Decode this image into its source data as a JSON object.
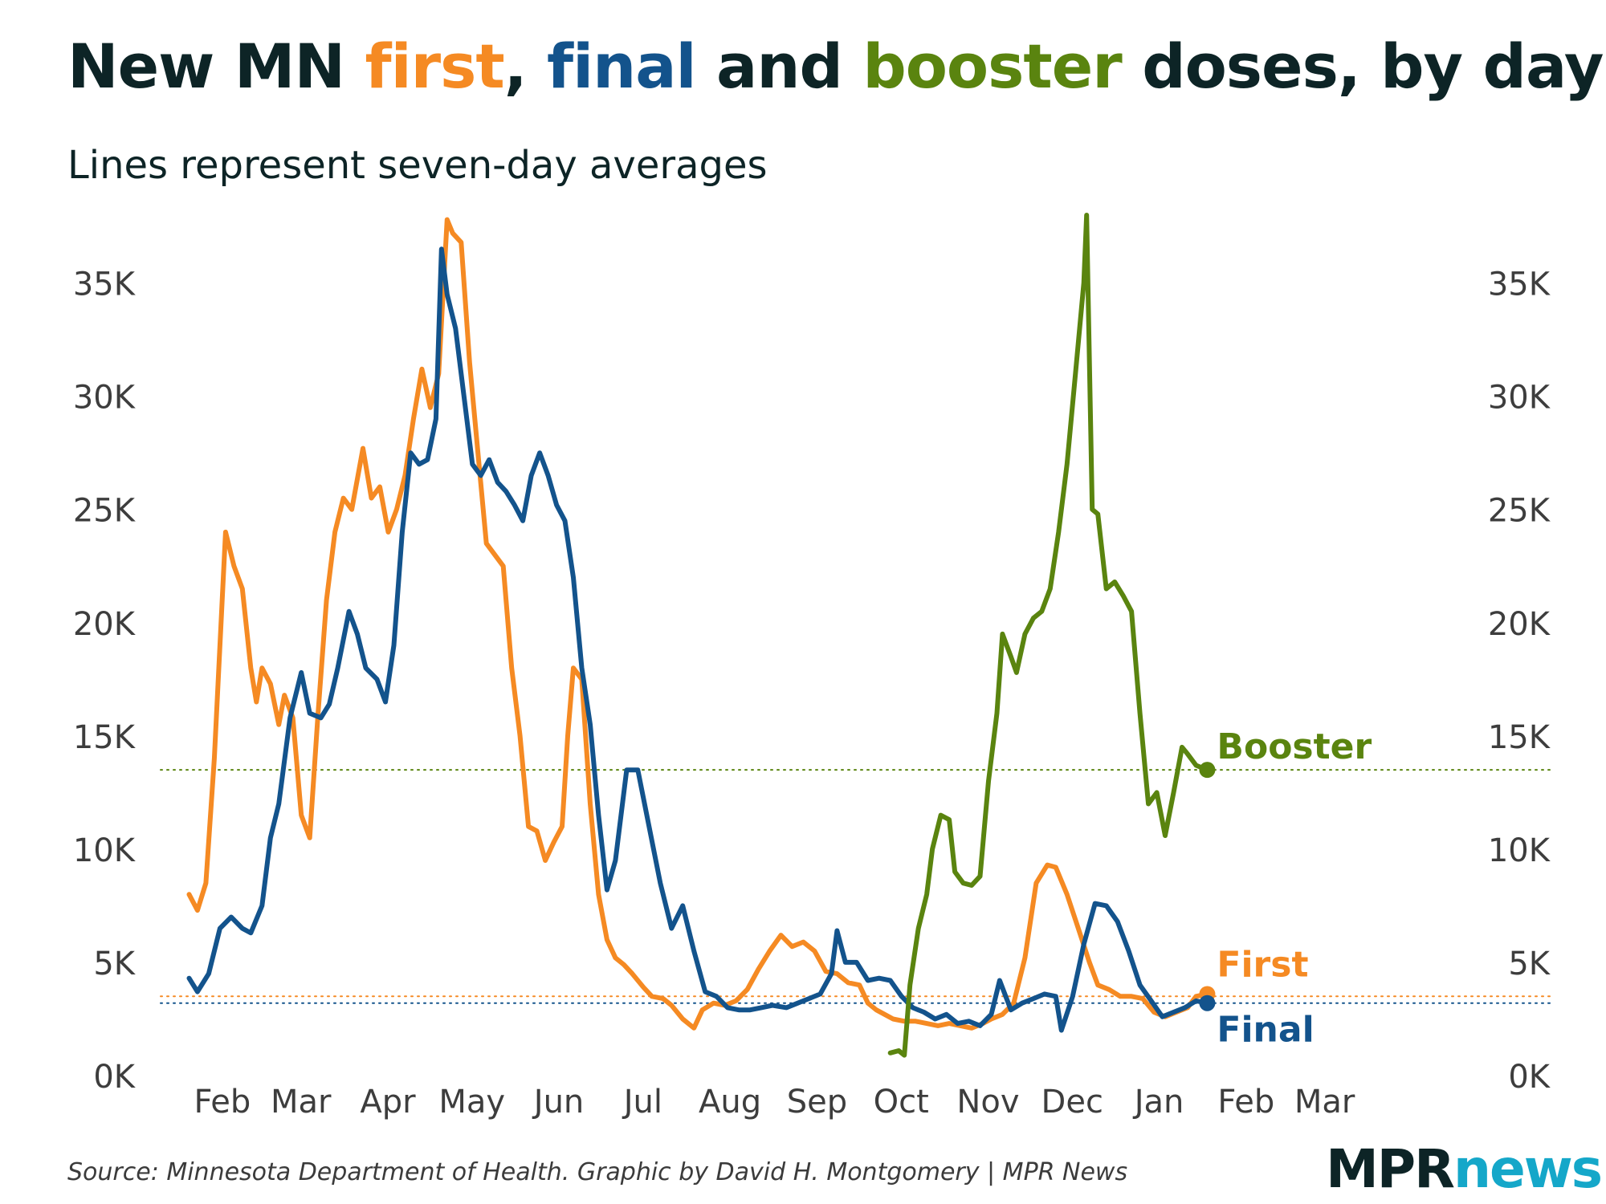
{
  "header": {
    "title_parts": {
      "p1": "New MN ",
      "first": "first",
      "p2": ", ",
      "final": "final",
      "p3": " and ",
      "booster": "booster",
      "p4": " doses, by day"
    },
    "subtitle": "Lines represent seven-day averages"
  },
  "footer": {
    "source": "Source: Minnesota Department of Health. Graphic by David H. Montgomery | MPR News",
    "logo_part1": "MPR",
    "logo_part2": "news"
  },
  "colors": {
    "first": "#f58a23",
    "final": "#13538c",
    "booster": "#5a840f",
    "text": "#0d2426",
    "axis_text": "#3d3d3d"
  },
  "chart_data": {
    "type": "line",
    "x_domain": [
      "2021-01-14",
      "2022-03-20"
    ],
    "ylim": [
      0,
      38000
    ],
    "y_ticks": [
      0,
      5000,
      10000,
      15000,
      20000,
      25000,
      30000,
      35000
    ],
    "y_tick_labels": [
      "0K",
      "5K",
      "10K",
      "15K",
      "20K",
      "25K",
      "30K",
      "35K"
    ],
    "x_ticks": [
      "2021-02-01",
      "2021-03-01",
      "2021-04-01",
      "2021-05-01",
      "2021-06-01",
      "2021-07-01",
      "2021-08-01",
      "2021-09-01",
      "2021-10-01",
      "2021-11-01",
      "2021-12-01",
      "2022-01-01",
      "2022-02-01",
      "2022-03-01"
    ],
    "x_tick_labels": [
      "Feb",
      "Mar",
      "Apr",
      "May",
      "Jun",
      "Jul",
      "Aug",
      "Sep",
      "Oct",
      "Nov",
      "Dec",
      "Jan",
      "Feb",
      "Mar"
    ],
    "xlabel": "",
    "ylabel": "",
    "grid": false,
    "reference_lines": [
      {
        "series": "Booster",
        "y": 13500
      },
      {
        "series": "First",
        "y": 3500
      },
      {
        "series": "Final",
        "y": 3200
      }
    ],
    "series": [
      {
        "name": "First",
        "color": "#f58a23",
        "points": [
          [
            "2021-01-19",
            8000
          ],
          [
            "2021-01-22",
            7300
          ],
          [
            "2021-01-25",
            8500
          ],
          [
            "2021-01-28",
            14000
          ],
          [
            "2021-02-01",
            24000
          ],
          [
            "2021-02-04",
            22500
          ],
          [
            "2021-02-07",
            21500
          ],
          [
            "2021-02-10",
            18000
          ],
          [
            "2021-02-12",
            16500
          ],
          [
            "2021-02-14",
            18000
          ],
          [
            "2021-02-17",
            17300
          ],
          [
            "2021-02-20",
            15500
          ],
          [
            "2021-02-22",
            16800
          ],
          [
            "2021-02-25",
            15800
          ],
          [
            "2021-02-28",
            11500
          ],
          [
            "2021-03-03",
            10500
          ],
          [
            "2021-03-06",
            16000
          ],
          [
            "2021-03-09",
            21000
          ],
          [
            "2021-03-12",
            24000
          ],
          [
            "2021-03-15",
            25500
          ],
          [
            "2021-03-18",
            25000
          ],
          [
            "2021-03-22",
            27700
          ],
          [
            "2021-03-25",
            25500
          ],
          [
            "2021-03-28",
            26000
          ],
          [
            "2021-03-31",
            24000
          ],
          [
            "2021-04-03",
            25000
          ],
          [
            "2021-04-06",
            26500
          ],
          [
            "2021-04-09",
            29000
          ],
          [
            "2021-04-12",
            31200
          ],
          [
            "2021-04-15",
            29500
          ],
          [
            "2021-04-18",
            31000
          ],
          [
            "2021-04-21",
            37800
          ],
          [
            "2021-04-23",
            37200
          ],
          [
            "2021-04-26",
            36800
          ],
          [
            "2021-04-29",
            31500
          ],
          [
            "2021-05-02",
            27500
          ],
          [
            "2021-05-05",
            23500
          ],
          [
            "2021-05-08",
            23000
          ],
          [
            "2021-05-11",
            22500
          ],
          [
            "2021-05-14",
            18000
          ],
          [
            "2021-05-17",
            15000
          ],
          [
            "2021-05-20",
            11000
          ],
          [
            "2021-05-23",
            10800
          ],
          [
            "2021-05-26",
            9500
          ],
          [
            "2021-05-29",
            10300
          ],
          [
            "2021-06-01",
            11000
          ],
          [
            "2021-06-03",
            15000
          ],
          [
            "2021-06-05",
            18000
          ],
          [
            "2021-06-08",
            17500
          ],
          [
            "2021-06-11",
            12000
          ],
          [
            "2021-06-14",
            8000
          ],
          [
            "2021-06-17",
            6000
          ],
          [
            "2021-06-20",
            5200
          ],
          [
            "2021-06-23",
            4900
          ],
          [
            "2021-06-26",
            4500
          ],
          [
            "2021-06-30",
            3900
          ],
          [
            "2021-07-03",
            3500
          ],
          [
            "2021-07-07",
            3400
          ],
          [
            "2021-07-10",
            3100
          ],
          [
            "2021-07-14",
            2500
          ],
          [
            "2021-07-18",
            2100
          ],
          [
            "2021-07-21",
            2900
          ],
          [
            "2021-07-25",
            3200
          ],
          [
            "2021-07-29",
            3100
          ],
          [
            "2021-08-02",
            3300
          ],
          [
            "2021-08-06",
            3800
          ],
          [
            "2021-08-10",
            4700
          ],
          [
            "2021-08-14",
            5500
          ],
          [
            "2021-08-18",
            6200
          ],
          [
            "2021-08-22",
            5700
          ],
          [
            "2021-08-26",
            5900
          ],
          [
            "2021-08-30",
            5500
          ],
          [
            "2021-09-03",
            4600
          ],
          [
            "2021-09-07",
            4500
          ],
          [
            "2021-09-11",
            4100
          ],
          [
            "2021-09-15",
            4000
          ],
          [
            "2021-09-18",
            3200
          ],
          [
            "2021-09-21",
            2900
          ],
          [
            "2021-09-24",
            2700
          ],
          [
            "2021-09-27",
            2500
          ],
          [
            "2021-10-01",
            2400
          ],
          [
            "2021-10-05",
            2400
          ],
          [
            "2021-10-09",
            2300
          ],
          [
            "2021-10-13",
            2200
          ],
          [
            "2021-10-17",
            2300
          ],
          [
            "2021-10-21",
            2200
          ],
          [
            "2021-10-25",
            2100
          ],
          [
            "2021-10-29",
            2300
          ],
          [
            "2021-11-01",
            2500
          ],
          [
            "2021-11-05",
            2700
          ],
          [
            "2021-11-09",
            3200
          ],
          [
            "2021-11-13",
            5200
          ],
          [
            "2021-11-17",
            8500
          ],
          [
            "2021-11-21",
            9300
          ],
          [
            "2021-11-24",
            9200
          ],
          [
            "2021-11-28",
            8000
          ],
          [
            "2021-12-02",
            6500
          ],
          [
            "2021-12-06",
            5000
          ],
          [
            "2021-12-09",
            4000
          ],
          [
            "2021-12-13",
            3800
          ],
          [
            "2021-12-17",
            3500
          ],
          [
            "2021-12-21",
            3500
          ],
          [
            "2021-12-25",
            3400
          ],
          [
            "2021-12-29",
            2800
          ],
          [
            "2022-01-02",
            2600
          ],
          [
            "2022-01-06",
            2800
          ],
          [
            "2022-01-10",
            3000
          ],
          [
            "2022-01-13",
            3500
          ],
          [
            "2022-01-17",
            3600
          ]
        ]
      },
      {
        "name": "Final",
        "color": "#13538c",
        "points": [
          [
            "2021-01-19",
            4300
          ],
          [
            "2021-01-22",
            3700
          ],
          [
            "2021-01-26",
            4500
          ],
          [
            "2021-01-30",
            6500
          ],
          [
            "2021-02-03",
            7000
          ],
          [
            "2021-02-07",
            6500
          ],
          [
            "2021-02-10",
            6300
          ],
          [
            "2021-02-14",
            7500
          ],
          [
            "2021-02-17",
            10500
          ],
          [
            "2021-02-20",
            12000
          ],
          [
            "2021-02-24",
            15800
          ],
          [
            "2021-02-28",
            17800
          ],
          [
            "2021-03-03",
            16000
          ],
          [
            "2021-03-07",
            15800
          ],
          [
            "2021-03-10",
            16400
          ],
          [
            "2021-03-13",
            18000
          ],
          [
            "2021-03-17",
            20500
          ],
          [
            "2021-03-20",
            19500
          ],
          [
            "2021-03-23",
            18000
          ],
          [
            "2021-03-27",
            17500
          ],
          [
            "2021-03-30",
            16500
          ],
          [
            "2021-04-02",
            19000
          ],
          [
            "2021-04-05",
            24000
          ],
          [
            "2021-04-08",
            27500
          ],
          [
            "2021-04-11",
            27000
          ],
          [
            "2021-04-14",
            27200
          ],
          [
            "2021-04-17",
            29000
          ],
          [
            "2021-04-19",
            36500
          ],
          [
            "2021-04-21",
            34500
          ],
          [
            "2021-04-24",
            33000
          ],
          [
            "2021-04-27",
            30000
          ],
          [
            "2021-04-30",
            27000
          ],
          [
            "2021-05-03",
            26500
          ],
          [
            "2021-05-06",
            27200
          ],
          [
            "2021-05-09",
            26200
          ],
          [
            "2021-05-12",
            25800
          ],
          [
            "2021-05-15",
            25200
          ],
          [
            "2021-05-18",
            24500
          ],
          [
            "2021-05-21",
            26500
          ],
          [
            "2021-05-24",
            27500
          ],
          [
            "2021-05-27",
            26500
          ],
          [
            "2021-05-30",
            25200
          ],
          [
            "2021-06-02",
            24500
          ],
          [
            "2021-06-05",
            22000
          ],
          [
            "2021-06-08",
            18000
          ],
          [
            "2021-06-11",
            15500
          ],
          [
            "2021-06-14",
            11500
          ],
          [
            "2021-06-17",
            8200
          ],
          [
            "2021-06-20",
            9500
          ],
          [
            "2021-06-24",
            13500
          ],
          [
            "2021-06-28",
            13500
          ],
          [
            "2021-07-02",
            11000
          ],
          [
            "2021-07-06",
            8500
          ],
          [
            "2021-07-10",
            6500
          ],
          [
            "2021-07-14",
            7500
          ],
          [
            "2021-07-18",
            5500
          ],
          [
            "2021-07-22",
            3700
          ],
          [
            "2021-07-26",
            3500
          ],
          [
            "2021-07-30",
            3000
          ],
          [
            "2021-08-03",
            2900
          ],
          [
            "2021-08-07",
            2900
          ],
          [
            "2021-08-11",
            3000
          ],
          [
            "2021-08-15",
            3100
          ],
          [
            "2021-08-20",
            3000
          ],
          [
            "2021-08-24",
            3200
          ],
          [
            "2021-08-28",
            3400
          ],
          [
            "2021-09-01",
            3600
          ],
          [
            "2021-09-05",
            4500
          ],
          [
            "2021-09-07",
            6400
          ],
          [
            "2021-09-10",
            5000
          ],
          [
            "2021-09-14",
            5000
          ],
          [
            "2021-09-18",
            4200
          ],
          [
            "2021-09-22",
            4300
          ],
          [
            "2021-09-26",
            4200
          ],
          [
            "2021-09-30",
            3500
          ],
          [
            "2021-10-04",
            3000
          ],
          [
            "2021-10-08",
            2800
          ],
          [
            "2021-10-12",
            2500
          ],
          [
            "2021-10-16",
            2700
          ],
          [
            "2021-10-20",
            2300
          ],
          [
            "2021-10-24",
            2400
          ],
          [
            "2021-10-28",
            2200
          ],
          [
            "2021-11-01",
            2700
          ],
          [
            "2021-11-04",
            4200
          ],
          [
            "2021-11-08",
            2900
          ],
          [
            "2021-11-12",
            3200
          ],
          [
            "2021-11-16",
            3400
          ],
          [
            "2021-11-20",
            3600
          ],
          [
            "2021-11-24",
            3500
          ],
          [
            "2021-11-26",
            2000
          ],
          [
            "2021-11-30",
            3500
          ],
          [
            "2021-12-04",
            5800
          ],
          [
            "2021-12-08",
            7600
          ],
          [
            "2021-12-12",
            7500
          ],
          [
            "2021-12-16",
            6800
          ],
          [
            "2021-12-20",
            5500
          ],
          [
            "2021-12-24",
            4000
          ],
          [
            "2021-12-28",
            3300
          ],
          [
            "2022-01-01",
            2600
          ],
          [
            "2022-01-05",
            2800
          ],
          [
            "2022-01-09",
            3000
          ],
          [
            "2022-01-13",
            3300
          ],
          [
            "2022-01-17",
            3200
          ]
        ]
      },
      {
        "name": "Booster",
        "color": "#5a840f",
        "points": [
          [
            "2021-09-26",
            1000
          ],
          [
            "2021-09-29",
            1100
          ],
          [
            "2021-10-01",
            900
          ],
          [
            "2021-10-03",
            4000
          ],
          [
            "2021-10-06",
            6500
          ],
          [
            "2021-10-09",
            8000
          ],
          [
            "2021-10-11",
            10000
          ],
          [
            "2021-10-14",
            11500
          ],
          [
            "2021-10-17",
            11300
          ],
          [
            "2021-10-19",
            9000
          ],
          [
            "2021-10-22",
            8500
          ],
          [
            "2021-10-25",
            8400
          ],
          [
            "2021-10-28",
            8800
          ],
          [
            "2021-10-31",
            13000
          ],
          [
            "2021-11-03",
            16000
          ],
          [
            "2021-11-05",
            19500
          ],
          [
            "2021-11-08",
            18500
          ],
          [
            "2021-11-10",
            17800
          ],
          [
            "2021-11-13",
            19500
          ],
          [
            "2021-11-16",
            20200
          ],
          [
            "2021-11-19",
            20500
          ],
          [
            "2021-11-22",
            21500
          ],
          [
            "2021-11-25",
            24000
          ],
          [
            "2021-11-28",
            27000
          ],
          [
            "2021-12-01",
            31000
          ],
          [
            "2021-12-04",
            35000
          ],
          [
            "2021-12-05",
            38000
          ],
          [
            "2021-12-07",
            25000
          ],
          [
            "2021-12-09",
            24800
          ],
          [
            "2021-12-12",
            21500
          ],
          [
            "2021-12-15",
            21800
          ],
          [
            "2021-12-18",
            21200
          ],
          [
            "2021-12-21",
            20500
          ],
          [
            "2021-12-24",
            16000
          ],
          [
            "2021-12-27",
            12000
          ],
          [
            "2021-12-30",
            12500
          ],
          [
            "2022-01-02",
            10600
          ],
          [
            "2022-01-05",
            12500
          ],
          [
            "2022-01-08",
            14500
          ],
          [
            "2022-01-10",
            14200
          ],
          [
            "2022-01-13",
            13700
          ],
          [
            "2022-01-17",
            13500
          ]
        ]
      }
    ]
  }
}
